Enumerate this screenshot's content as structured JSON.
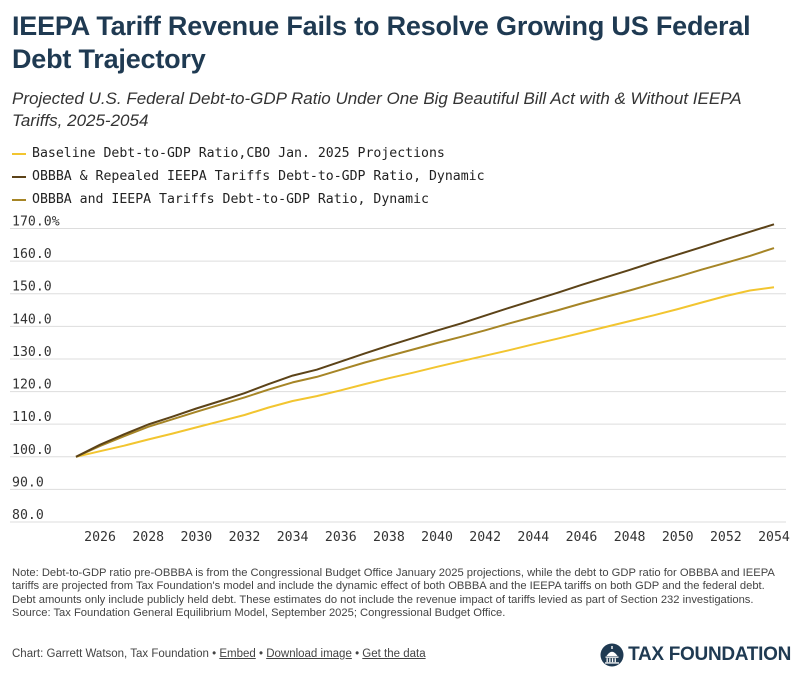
{
  "header": {
    "title": "IEEPA Tariff Revenue Fails to Resolve Growing US Federal Debt Trajectory",
    "subtitle": "Projected U.S. Federal Debt-to-GDP Ratio Under One Big Beautiful Bill Act with & Without IEEPA Tariffs, 2025-2054"
  },
  "colors": {
    "baseline": "#f2c530",
    "repealed": "#5c4318",
    "tariffs": "#a68526",
    "grid": "#dddddd",
    "title": "#1f3a52"
  },
  "chart_data": {
    "type": "line",
    "title": "Projected U.S. Federal Debt-to-GDP Ratio Under One Big Beautiful Bill Act with & Without IEEPA Tariffs, 2025-2054",
    "xlabel": "",
    "ylabel": "",
    "ylim": [
      80,
      172
    ],
    "y_ticks": [
      "80.0",
      "90.0",
      "100.0",
      "110.0",
      "120.0",
      "130.0",
      "140.0",
      "150.0",
      "160.0",
      "170.0%"
    ],
    "y_tick_values": [
      80,
      90,
      100,
      110,
      120,
      130,
      140,
      150,
      160,
      170
    ],
    "x_ticks": [
      "2026",
      "2028",
      "2030",
      "2032",
      "2034",
      "2036",
      "2038",
      "2040",
      "2042",
      "2044",
      "2046",
      "2048",
      "2050",
      "2052",
      "2054"
    ],
    "x_tick_values": [
      2026,
      2028,
      2030,
      2032,
      2034,
      2036,
      2038,
      2040,
      2042,
      2044,
      2046,
      2048,
      2050,
      2052,
      2054
    ],
    "grid": "horizontal",
    "legend_position": "top-left",
    "x": [
      2025,
      2026,
      2027,
      2028,
      2029,
      2030,
      2031,
      2032,
      2033,
      2034,
      2035,
      2036,
      2037,
      2038,
      2039,
      2040,
      2041,
      2042,
      2043,
      2044,
      2045,
      2046,
      2047,
      2048,
      2049,
      2050,
      2051,
      2052,
      2053,
      2054
    ],
    "series": [
      {
        "name": "Baseline Debt-to-GDP Ratio,CBO Jan. 2025 Projections",
        "color": "#f2c530",
        "values": [
          100.0,
          101.7,
          103.4,
          105.3,
          107.1,
          109.0,
          110.9,
          112.8,
          115.1,
          117.1,
          118.6,
          120.4,
          122.3,
          124.1,
          125.8,
          127.6,
          129.3,
          131.0,
          132.7,
          134.5,
          136.2,
          138.0,
          139.8,
          141.6,
          143.4,
          145.3,
          147.3,
          149.3,
          151.0,
          152.0
        ]
      },
      {
        "name": "OBBBA & Repealed IEEPA Tariffs Debt-to-GDP Ratio, Dynamic",
        "color": "#5c4318",
        "values": [
          100.0,
          103.7,
          106.9,
          109.9,
          112.3,
          114.8,
          117.1,
          119.5,
          122.3,
          124.9,
          126.7,
          129.2,
          131.7,
          134.1,
          136.4,
          138.7,
          140.9,
          143.3,
          145.7,
          148.0,
          150.3,
          152.7,
          155.0,
          157.3,
          159.7,
          162.0,
          164.3,
          166.7,
          169.0,
          171.3
        ]
      },
      {
        "name": "OBBBA and IEEPA Tariffs Debt-to-GDP Ratio, Dynamic",
        "color": "#a68526",
        "values": [
          100.0,
          103.3,
          106.3,
          109.2,
          111.5,
          113.8,
          116.0,
          118.2,
          120.6,
          122.8,
          124.5,
          126.7,
          128.9,
          130.9,
          132.9,
          134.9,
          136.8,
          138.8,
          140.9,
          142.9,
          144.9,
          147.0,
          149.0,
          151.0,
          153.1,
          155.2,
          157.4,
          159.5,
          161.6,
          164.0
        ]
      }
    ]
  },
  "notes": {
    "note": "Note: Debt-to-GDP ratio pre-OBBBA is from the Congressional Budget Office January 2025 projections, while the debt to GDP ratio for OBBBA and IEEPA tariffs are projected from Tax Foundation's model and include the dynamic effect of both OBBBA and the IEEPA tariffs on both GDP and the federal debt. Debt amounts only include publicly held debt. These estimates do not include the revenue impact of tariffs levied as part of Section 232 investigations.",
    "source": "Source: Tax Foundation General Equilibrium Model, September 2025; Congressional Budget Office."
  },
  "footer": {
    "credit": "Chart: Garrett Watson, Tax Foundation",
    "sep": "•",
    "embed": "Embed",
    "download": "Download image",
    "data": "Get the data",
    "brand": "TAX FOUNDATION",
    "brand_icon": "capitol-dome-icon"
  }
}
